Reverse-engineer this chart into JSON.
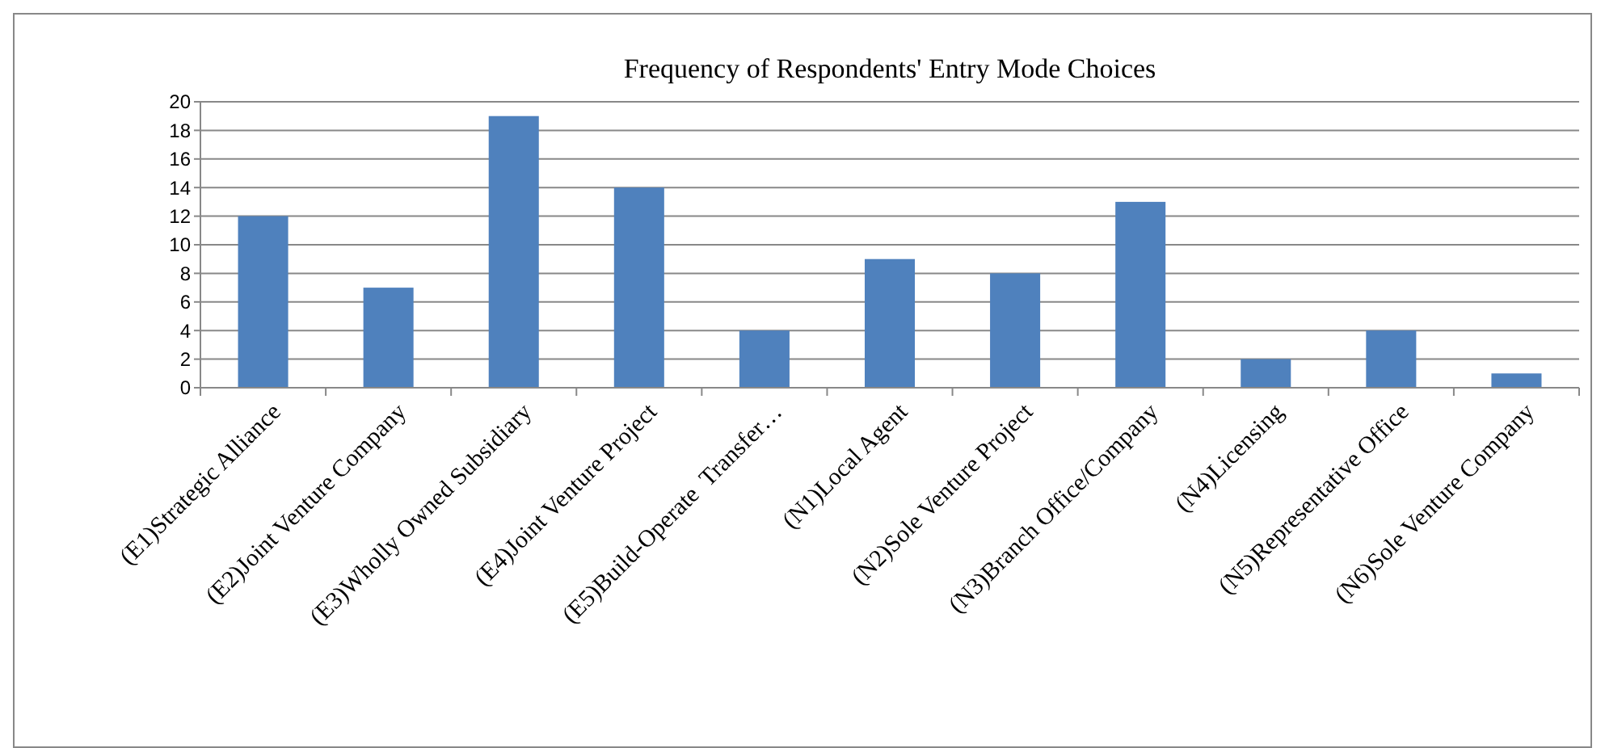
{
  "chart_data": {
    "type": "bar",
    "title": "Frequency of Respondents' Entry Mode Choices",
    "categories": [
      "(E1)Strategic Alliance",
      "(E2)Joint Venture Company",
      "(E3)Wholly Owned Subsidiary",
      "(E4)Joint Venture Project",
      "(E5)Build-Operate  Transfer…",
      "(N1)Local Agent",
      "(N2)Sole Venture Project",
      "(N3)Branch Office/Company",
      "(N4)Licensing",
      "(N5)Representative Office",
      "(N6)Sole Venture Company"
    ],
    "values": [
      12,
      7,
      19,
      14,
      4,
      9,
      8,
      13,
      2,
      4,
      1
    ],
    "color": "#4f81bd",
    "ylim": [
      0,
      20
    ],
    "yticks": [
      0,
      2,
      4,
      6,
      8,
      10,
      12,
      14,
      16,
      18,
      20
    ],
    "grid": "y"
  }
}
